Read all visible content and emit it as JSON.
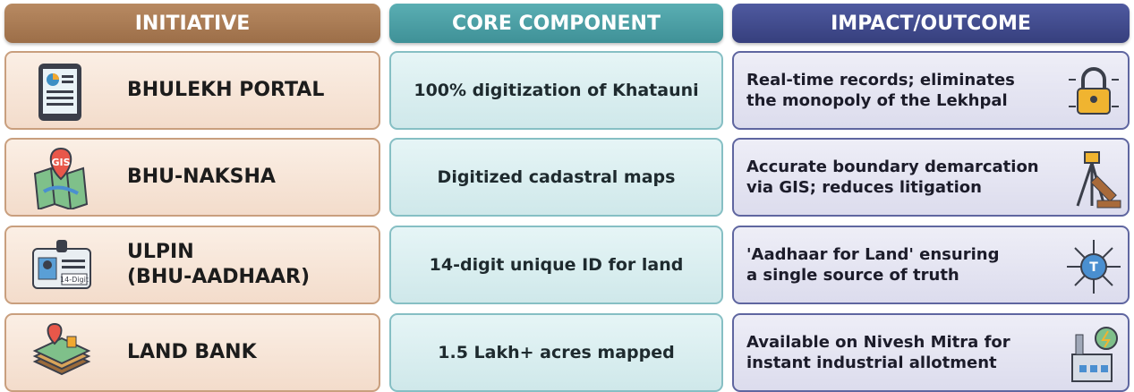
{
  "header": {
    "columns": [
      "INITIATIVE",
      "CORE COMPONENT",
      "IMPACT/OUTCOME"
    ]
  },
  "table": {
    "rows": [
      {
        "initiative": [
          "BHULEKH PORTAL"
        ],
        "component": "100% digitization of Khatauni",
        "impact": [
          "Real-time records; eliminates",
          "the monopoly of the Lekhpal"
        ]
      },
      {
        "initiative": [
          "BHU-NAKSHA"
        ],
        "icon_label": "GIS",
        "component": "Digitized cadastral maps",
        "impact": [
          "Accurate boundary demarcation",
          "via GIS; reduces litigation"
        ]
      },
      {
        "initiative": [
          "ULPIN",
          "(BHU-AADHAAR)"
        ],
        "icon_label": "14-Digit",
        "component": "14-digit unique ID for land",
        "impact": [
          "'Aadhaar for Land' ensuring",
          "a single source of truth"
        ],
        "impact_icon_label": "T"
      },
      {
        "initiative": [
          "LAND BANK"
        ],
        "component": "1.5 Lakh+ acres mapped",
        "impact": [
          "Available on Nivesh Mitra for",
          "instant industrial allotment"
        ]
      }
    ]
  }
}
